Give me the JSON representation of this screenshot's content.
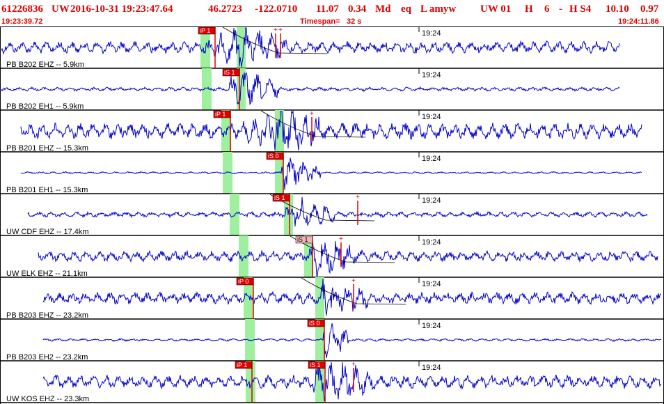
{
  "header": {
    "event_id": "61226836",
    "network": "UW",
    "datetime": "2016-10-31 19:23:47.64",
    "lat": "46.2723",
    "lon": "-122.0710",
    "depth": "11.07",
    "magnitude": "0.34",
    "mag_type": "Md",
    "event_type": "eq",
    "flags": "L amyw",
    "source": "UW 01",
    "quality": "H",
    "nphases": "6",
    "dash": "-",
    "grade": "H S4",
    "gap": "10.10",
    "rms": "0.97",
    "start_time": "19:23:39.72",
    "timespan_label": "Timespan=",
    "timespan_value": "32 s",
    "end_time": "19:24:11.86"
  },
  "minute_label": "19:24",
  "colors": {
    "header_text": "#e00000",
    "trace": "#0000cc",
    "pick": "#e00000",
    "green_band": "#9ef09e",
    "pick_box_red": "#e00000",
    "pick_box_pink": "#f4b4b4"
  },
  "channels": [
    {
      "label": "PB B202 EHZ --",
      "dist": "5.9km",
      "picks": [
        {
          "type": "iP 1",
          "style": "red"
        }
      ]
    },
    {
      "label": "PB B202 EH1 --",
      "dist": "5.9km",
      "picks": [
        {
          "type": "iS 1",
          "style": "red"
        }
      ]
    },
    {
      "label": "PB B201 EHZ --",
      "dist": "15.3km",
      "picks": [
        {
          "type": "iP 1",
          "style": "red"
        }
      ]
    },
    {
      "label": "PB B201 EH1 --",
      "dist": "15.3km",
      "picks": [
        {
          "type": "iS 0",
          "style": "red"
        }
      ]
    },
    {
      "label": "UW CDF EHZ --",
      "dist": "17.4km",
      "picks": [
        {
          "type": "iS 1",
          "style": "red"
        }
      ]
    },
    {
      "label": "UW ELK EHZ --",
      "dist": "21.1km",
      "picks": [
        {
          "type": "iS 1",
          "style": "pink"
        }
      ]
    },
    {
      "label": "PB B203 EHZ --",
      "dist": "23.2km",
      "picks": [
        {
          "type": "iP 0",
          "style": "red"
        }
      ]
    },
    {
      "label": "PB B203 EH2 --",
      "dist": "23.2km",
      "picks": [
        {
          "type": "iS 0",
          "style": "red"
        }
      ]
    },
    {
      "label": "UW KOS EHZ --",
      "dist": "23.3km",
      "picks": [
        {
          "type": "iP 1",
          "style": "red"
        },
        {
          "type": "iS 1",
          "style": "red"
        }
      ]
    }
  ]
}
